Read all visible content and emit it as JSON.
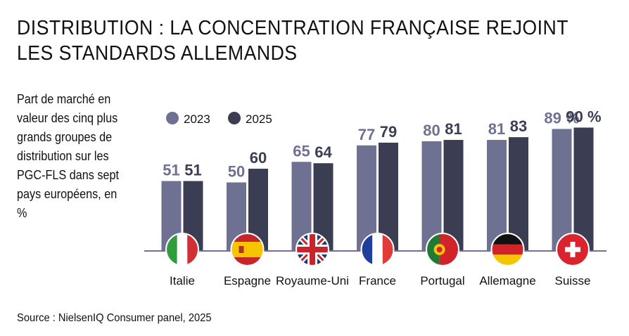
{
  "title": {
    "line1": "DISTRIBUTION : LA CONCENTRATION FRANÇAISE REJOINT",
    "line2": "LES STANDARDS ALLEMANDS"
  },
  "subtitle": "Part de marché en valeur des cinq plus grands groupes de distribution sur les PGC-FLS dans sept pays européens, en %",
  "source": "Source : NielsenIQ Consumer panel, 2025",
  "colors": {
    "series_2023": "#6e7191",
    "series_2025": "#3b3d52",
    "label_2023": "#6e7191",
    "label_2025": "#3b3d52",
    "baseline": "#6e7191"
  },
  "chart_data": {
    "type": "bar",
    "title": "DISTRIBUTION : LA CONCENTRATION FRANÇAISE REJOINT LES STANDARDS ALLEMANDS",
    "ylabel": "Part de marché en valeur des cinq plus grands groupes de distribution sur les PGC-FLS dans sept pays européens, en %",
    "xlabel": "",
    "ylim": [
      0,
      100
    ],
    "legend": "top-left",
    "categories": [
      "Italie",
      "Espagne",
      "Royaume-Uni",
      "France",
      "Portugal",
      "Allemagne",
      "Suisse"
    ],
    "flags": [
      "italy-flag-icon",
      "spain-flag-icon",
      "uk-flag-icon",
      "france-flag-icon",
      "portugal-flag-icon",
      "germany-flag-icon",
      "switzerland-flag-icon"
    ],
    "series": [
      {
        "name": "2023",
        "values": [
          51,
          50,
          65,
          77,
          80,
          81,
          89
        ],
        "labels": [
          "51",
          "50",
          "65",
          "77",
          "80",
          "81",
          "89 %"
        ]
      },
      {
        "name": "2025",
        "values": [
          51,
          60,
          64,
          79,
          81,
          83,
          90
        ],
        "labels": [
          "51",
          "60",
          "64",
          "79",
          "81",
          "83",
          "90 %"
        ]
      }
    ]
  }
}
